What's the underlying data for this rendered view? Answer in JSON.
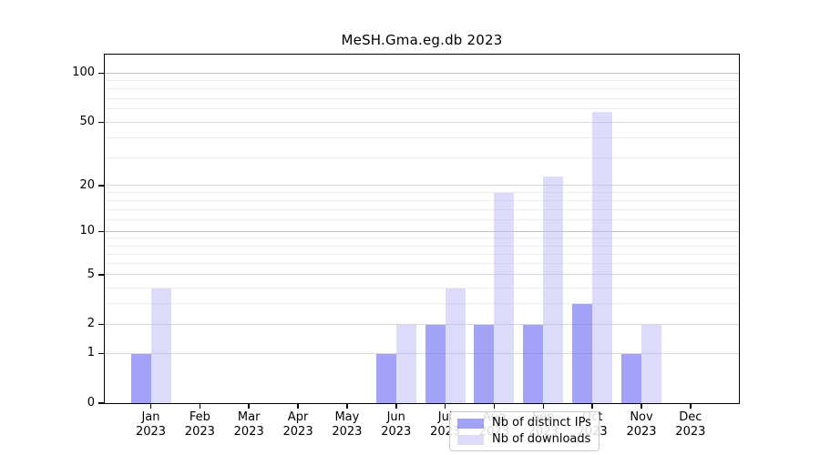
{
  "chart_data": {
    "type": "bar",
    "title": "MeSH.Gma.eg.db 2023",
    "categories": [
      "Jan",
      "Feb",
      "Mar",
      "Apr",
      "May",
      "Jun",
      "Jul",
      "Aug",
      "Sep",
      "Oct",
      "Nov",
      "Dec"
    ],
    "year_label": "2023",
    "series": [
      {
        "name": "Nb of distinct IPs",
        "values": [
          1,
          0,
          0,
          0,
          0,
          1,
          2,
          2,
          2,
          3,
          1,
          0
        ],
        "color": "rgba(100,100,240,0.6)"
      },
      {
        "name": "Nb of downloads",
        "values": [
          4,
          0,
          0,
          0,
          0,
          2,
          4,
          18,
          23,
          58,
          2,
          0
        ],
        "color": "rgba(185,185,245,0.5)"
      }
    ],
    "xlabel": "",
    "ylabel": "",
    "yscale": "log1p",
    "ylim": [
      0,
      130
    ],
    "yticks_major": [
      0,
      1,
      2,
      5,
      10,
      20,
      50,
      100
    ],
    "yticks_minor": [
      3,
      4,
      6,
      7,
      8,
      9,
      12,
      14,
      16,
      18,
      30,
      40,
      60,
      70,
      80,
      90
    ],
    "yticks_emphasized": [
      10,
      100
    ],
    "grid": true,
    "legend_position": "inside-bottom-center",
    "colors": {
      "grid_major": "#d9d9d9",
      "grid_minor": "#ededed",
      "grid_emphasis": "#c2c2c2",
      "axis": "#000000",
      "background": "#ffffff"
    }
  }
}
